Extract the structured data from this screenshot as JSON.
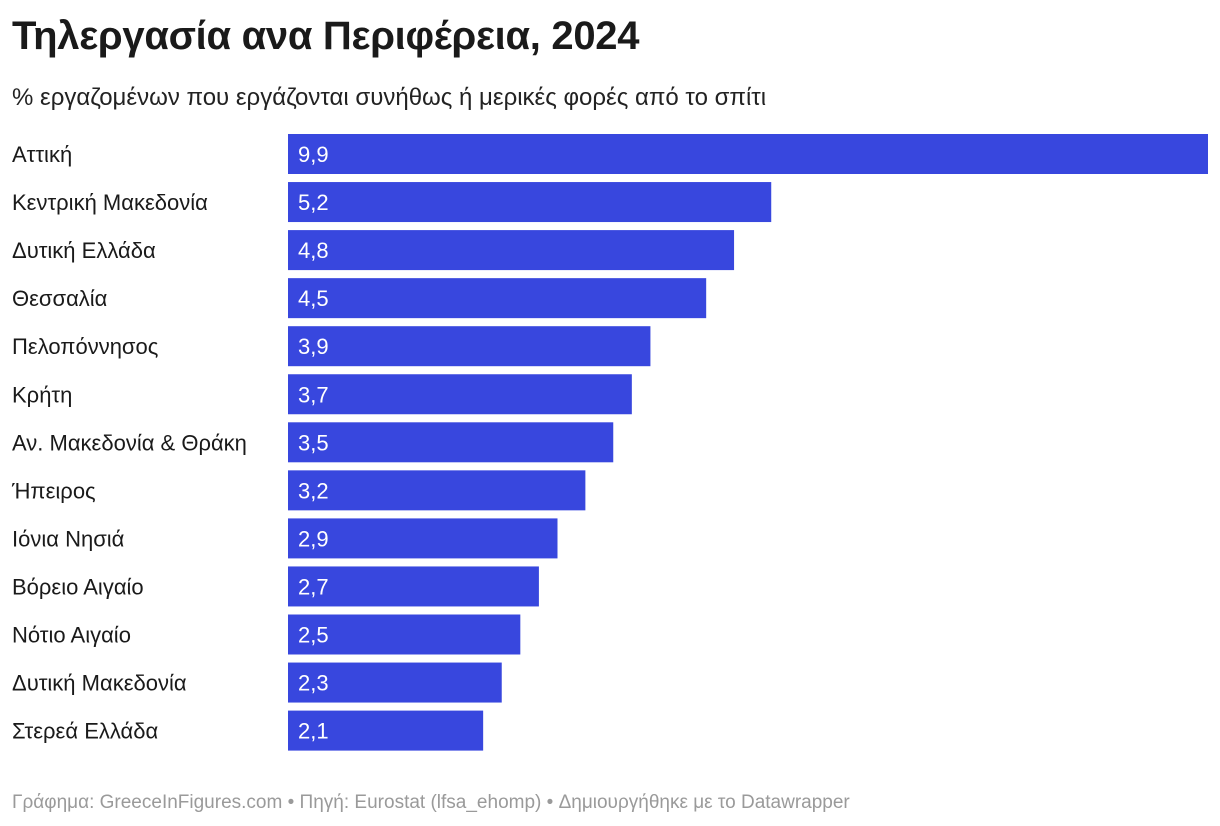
{
  "title": "Τηλεργασία ανα Περιφέρεια, 2024",
  "subtitle": "% εργαζομένων που εργάζονται συνήθως ή μερικές φορές από το σπίτι",
  "footer": "Γράφημα: GreeceInFigures.com • Πηγή: Eurostat (lfsa_ehomp) • Δημιουργήθηκε με το Datawrapper",
  "colors": {
    "bar": "#3847de"
  },
  "chart_data": {
    "type": "bar",
    "orientation": "horizontal",
    "title": "Τηλεργασία ανα Περιφέρεια, 2024",
    "subtitle": "% εργαζομένων που εργάζονται συνήθως ή μερικές φορές από το σπίτι",
    "xlabel": "",
    "ylabel": "",
    "xlim": [
      0,
      9.9
    ],
    "grid": false,
    "categories": [
      "Αττική",
      "Κεντρική Μακεδονία",
      "Δυτική Ελλάδα",
      "Θεσσαλία",
      "Πελοπόννησος",
      "Κρήτη",
      "Αν. Μακεδονία & Θράκη",
      "Ήπειρος",
      "Ιόνια Νησιά",
      "Βόρειο Αιγαίο",
      "Νότιο Αιγαίο",
      "Δυτική Μακεδονία",
      "Στερεά Ελλάδα"
    ],
    "values": [
      9.9,
      5.2,
      4.8,
      4.5,
      3.9,
      3.7,
      3.5,
      3.2,
      2.9,
      2.7,
      2.5,
      2.3,
      2.1
    ],
    "value_labels": [
      "9,9",
      "5,2",
      "4,8",
      "4,5",
      "3,9",
      "3,7",
      "3,5",
      "3,2",
      "2,9",
      "2,7",
      "2,5",
      "2,3",
      "2,1"
    ]
  }
}
